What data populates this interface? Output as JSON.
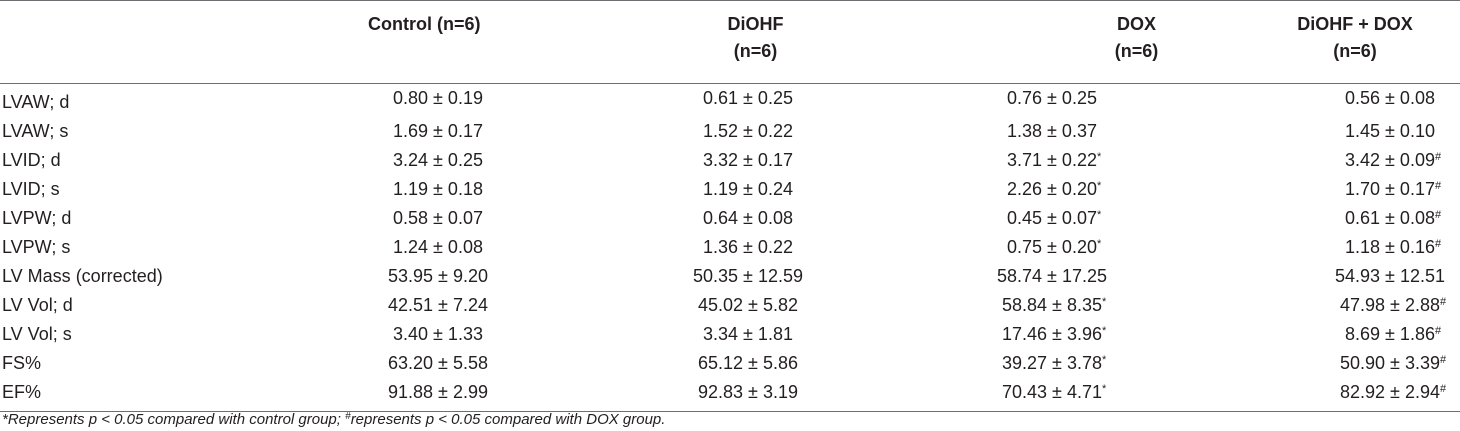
{
  "table": {
    "headers": [
      "",
      "Control (n=6)",
      "DiOHF\n(n=6)",
      "DOX\n(n=6)",
      "DiOHF + DOX\n(n=6)"
    ],
    "header_lines": {
      "control": [
        "Control (n=6)"
      ],
      "diohf": [
        "DiOHF",
        "(n=6)"
      ],
      "dox": [
        "DOX",
        "(n=6)"
      ],
      "combo": [
        "DiOHF + DOX",
        "(n=6)"
      ]
    },
    "rows": [
      {
        "label": "LVAW; d",
        "control": "0.80 ± 0.19",
        "diohf": "0.61 ± 0.25",
        "dox": "0.76 ± 0.25",
        "dox_mark": "",
        "combo": "0.56 ± 0.08",
        "combo_mark": ""
      },
      {
        "label": "LVAW; s",
        "control": "1.69 ± 0.17",
        "diohf": "1.52 ± 0.22",
        "dox": "1.38 ± 0.37",
        "dox_mark": "",
        "combo": "1.45 ± 0.10",
        "combo_mark": ""
      },
      {
        "label": "LVID; d",
        "control": "3.24 ± 0.25",
        "diohf": "3.32 ± 0.17",
        "dox": "3.71 ± 0.22",
        "dox_mark": "*",
        "combo": "3.42 ± 0.09",
        "combo_mark": "#"
      },
      {
        "label": "LVID; s",
        "control": "1.19 ± 0.18",
        "diohf": "1.19 ± 0.24",
        "dox": "2.26 ± 0.20",
        "dox_mark": "*",
        "combo": "1.70 ± 0.17",
        "combo_mark": "#"
      },
      {
        "label": "LVPW; d",
        "control": "0.58 ± 0.07",
        "diohf": "0.64 ± 0.08",
        "dox": "0.45 ± 0.07",
        "dox_mark": "*",
        "combo": "0.61 ± 0.08",
        "combo_mark": "#"
      },
      {
        "label": "LVPW; s",
        "control": "1.24 ± 0.08",
        "diohf": "1.36 ± 0.22",
        "dox": "0.75 ± 0.20",
        "dox_mark": "*",
        "combo": "1.18 ± 0.16",
        "combo_mark": "#"
      },
      {
        "label": "LV Mass (corrected)",
        "control": "53.95 ± 9.20",
        "diohf": "50.35 ± 12.59",
        "dox": "58.74 ± 17.25",
        "dox_mark": "",
        "combo": "54.93 ± 12.51",
        "combo_mark": ""
      },
      {
        "label": "LV Vol; d",
        "control": "42.51 ± 7.24",
        "diohf": "45.02 ± 5.82",
        "dox": "58.84 ± 8.35",
        "dox_mark": "*",
        "combo": "47.98 ± 2.88",
        "combo_mark": "#"
      },
      {
        "label": "LV Vol; s",
        "control": "3.40 ± 1.33",
        "diohf": "3.34 ± 1.81",
        "dox": "17.46 ± 3.96",
        "dox_mark": "*",
        "combo": "8.69 ± 1.86",
        "combo_mark": "#"
      },
      {
        "label": "FS%",
        "control": "63.20 ± 5.58",
        "diohf": "65.12 ± 5.86",
        "dox": "39.27 ± 3.78",
        "dox_mark": "*",
        "combo": "50.90 ± 3.39",
        "combo_mark": "#"
      },
      {
        "label": "EF%",
        "control": "91.88 ± 2.99",
        "diohf": "92.83 ± 3.19",
        "dox": "70.43 ± 4.71",
        "dox_mark": "*",
        "combo": "82.92 ± 2.94",
        "combo_mark": "#"
      }
    ]
  },
  "footnote": {
    "part1": "*Represents p < 0.05 compared with control group; ",
    "mark": "#",
    "part2": "represents p < 0.05 compared with DOX group."
  }
}
